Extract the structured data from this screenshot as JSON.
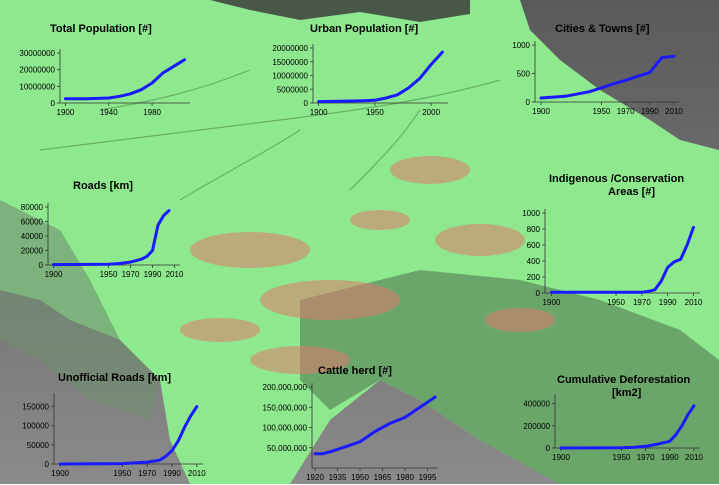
{
  "background": {
    "description_colors": {
      "land": "#8ee88e",
      "river": "#6fb86f",
      "ocean": "#7f7f7f",
      "deforestation": "#e07a6a",
      "dark": "#3c3c3c"
    }
  },
  "line_color": "#1a1aff",
  "chart_data": [
    {
      "id": "total-population",
      "type": "line",
      "title": "Total Population [#]",
      "x": [
        1900,
        1920,
        1940,
        1950,
        1960,
        1970,
        1980,
        1990,
        2000,
        2010
      ],
      "y": [
        2500000,
        2600000,
        3000000,
        4000000,
        5500000,
        8000000,
        12000000,
        18000000,
        22000000,
        26000000
      ],
      "xticks": [
        1900,
        1940,
        1980
      ],
      "xtick_labels": [
        "1900",
        "1940",
        "1980"
      ],
      "yticks": [
        0,
        10000000,
        20000000,
        30000000
      ],
      "ytick_labels": [
        "0",
        "10000000",
        "20000000",
        "30000000"
      ],
      "xlim": [
        1895,
        2015
      ],
      "ylim": [
        0,
        30000000
      ]
    },
    {
      "id": "urban-population",
      "type": "line",
      "title": "Urban Population [#]",
      "x": [
        1900,
        1920,
        1940,
        1950,
        1960,
        1970,
        1980,
        1990,
        2000,
        2010
      ],
      "y": [
        500000,
        600000,
        800000,
        1000000,
        1800000,
        3000000,
        5500000,
        9000000,
        14000000,
        18500000
      ],
      "xticks": [
        1900,
        1950,
        2000
      ],
      "xtick_labels": [
        "1900",
        "1950",
        "2000"
      ],
      "yticks": [
        0,
        5000000,
        10000000,
        15000000,
        20000000
      ],
      "ytick_labels": [
        "0",
        "5000000",
        "10000000",
        "15000000",
        "20000000"
      ],
      "xlim": [
        1895,
        2015
      ],
      "ylim": [
        0,
        20000000
      ]
    },
    {
      "id": "cities-towns",
      "type": "line",
      "title": "Cities & Towns [#]",
      "x": [
        1900,
        1920,
        1940,
        1950,
        1960,
        1970,
        1980,
        1990,
        2000,
        2010
      ],
      "y": [
        70,
        100,
        180,
        250,
        320,
        380,
        450,
        520,
        780,
        800
      ],
      "xticks": [
        1900,
        1950,
        1970,
        1990,
        2010
      ],
      "xtick_labels": [
        "1900",
        "1950",
        "1970",
        "1990",
        "2010"
      ],
      "yticks": [
        0,
        500,
        1000
      ],
      "ytick_labels": [
        "0",
        "500",
        "1000"
      ],
      "xlim": [
        1895,
        2015
      ],
      "ylim": [
        0,
        1000
      ]
    },
    {
      "id": "roads",
      "type": "line",
      "title": "Roads [km]",
      "x": [
        1900,
        1950,
        1960,
        1970,
        1980,
        1985,
        1990,
        1995,
        2000,
        2005
      ],
      "y": [
        500,
        1000,
        2000,
        4000,
        8000,
        12000,
        20000,
        55000,
        68000,
        75000
      ],
      "xticks": [
        1900,
        1950,
        1970,
        1990,
        2010
      ],
      "xtick_labels": [
        "1900",
        "1950",
        "1970",
        "1990",
        "2010"
      ],
      "yticks": [
        0,
        20000,
        40000,
        60000,
        80000
      ],
      "ytick_labels": [
        "0",
        "20000",
        "40000",
        "60000",
        "80000"
      ],
      "xlim": [
        1895,
        2015
      ],
      "ylim": [
        0,
        80000
      ]
    },
    {
      "id": "indigenous-conservation",
      "type": "line",
      "title_lines": [
        "Indigenous /Conservation",
        "Areas [#]"
      ],
      "x": [
        1900,
        1950,
        1960,
        1970,
        1975,
        1980,
        1985,
        1990,
        1995,
        2000,
        2005,
        2010
      ],
      "y": [
        10,
        10,
        10,
        10,
        20,
        40,
        150,
        320,
        390,
        420,
        600,
        820
      ],
      "xticks": [
        1900,
        1950,
        1970,
        1990,
        2010
      ],
      "xtick_labels": [
        "1900",
        "1950",
        "1970",
        "1990",
        "2010"
      ],
      "yticks": [
        0,
        200,
        400,
        600,
        800,
        1000
      ],
      "ytick_labels": [
        "0",
        "200",
        "400",
        "600",
        "800",
        "1000"
      ],
      "xlim": [
        1895,
        2015
      ],
      "ylim": [
        0,
        1000
      ]
    },
    {
      "id": "unofficial-roads",
      "type": "line",
      "title": "Unofficial Roads [km]",
      "x": [
        1900,
        1950,
        1970,
        1980,
        1985,
        1990,
        1995,
        2000,
        2005,
        2010
      ],
      "y": [
        0,
        1000,
        5000,
        10000,
        20000,
        35000,
        60000,
        95000,
        125000,
        150000
      ],
      "xticks": [
        1900,
        1950,
        1970,
        1990,
        2010
      ],
      "xtick_labels": [
        "1900",
        "1950",
        "1970",
        "1990",
        "2010"
      ],
      "yticks": [
        0,
        50000,
        100000,
        150000
      ],
      "ytick_labels": [
        "0",
        "50000",
        "100000",
        "150000"
      ],
      "xlim": [
        1895,
        2015
      ],
      "ylim": [
        0,
        175000
      ]
    },
    {
      "id": "cattle-herd",
      "type": "line",
      "title": "Cattle herd [#]",
      "x": [
        1920,
        1925,
        1930,
        1940,
        1950,
        1960,
        1970,
        1980,
        1990,
        2000
      ],
      "y": [
        35000000,
        35000000,
        40000000,
        52000000,
        65000000,
        90000000,
        110000000,
        125000000,
        150000000,
        175000000
      ],
      "xticks": [
        1920,
        1935,
        1950,
        1965,
        1980,
        1995
      ],
      "xtick_labels": [
        "1920",
        "1935",
        "1950",
        "1965",
        "1980",
        "1995"
      ],
      "yticks": [
        50000000,
        100000000,
        150000000,
        200000000
      ],
      "ytick_labels": [
        "50,000,000",
        "100,000,000",
        "150,000,000",
        "200,000,000"
      ],
      "xlim": [
        1918,
        2002
      ],
      "ylim": [
        0,
        200000000
      ]
    },
    {
      "id": "cumulative-deforestation",
      "type": "line",
      "title_lines": [
        "Cumulative Deforestation",
        "[km2]"
      ],
      "x": [
        1900,
        1950,
        1960,
        1970,
        1980,
        1990,
        1995,
        2000,
        2005,
        2010
      ],
      "y": [
        0,
        2000,
        5000,
        15000,
        35000,
        60000,
        120000,
        200000,
        300000,
        380000
      ],
      "xticks": [
        1900,
        1950,
        1970,
        1990,
        2010
      ],
      "xtick_labels": [
        "1900",
        "1950",
        "1970",
        "1990",
        "2010"
      ],
      "yticks": [
        0,
        200000,
        400000
      ],
      "ytick_labels": [
        "0",
        "200000",
        "400000"
      ],
      "xlim": [
        1895,
        2015
      ],
      "ylim": [
        0,
        450000
      ]
    }
  ]
}
